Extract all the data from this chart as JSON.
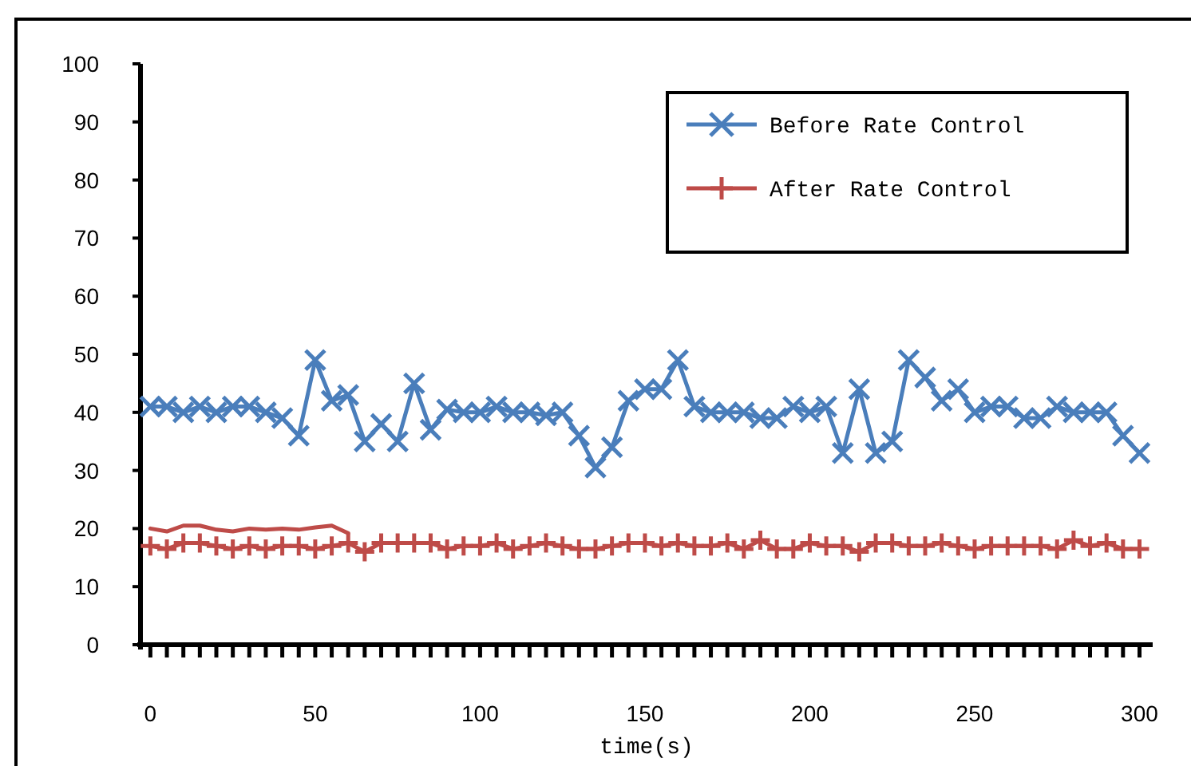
{
  "chart_data": {
    "type": "line",
    "xlabel": "time(s)",
    "xlim": [
      -3,
      304
    ],
    "ylim": [
      0,
      100
    ],
    "yticks": [
      0,
      10,
      20,
      30,
      40,
      50,
      60,
      70,
      80,
      90,
      100
    ],
    "xticks": [
      0,
      {
        "value": 5,
        "label": null
      },
      {
        "value": 10,
        "label": null
      },
      {
        "value": 15,
        "label": null
      },
      {
        "value": 20,
        "label": null
      },
      {
        "value": 25,
        "label": null
      },
      {
        "value": 30,
        "label": null
      },
      {
        "value": 35,
        "label": null
      },
      {
        "value": 40,
        "label": null
      },
      {
        "value": 45,
        "label": null
      },
      50,
      {
        "value": 55,
        "label": null
      },
      {
        "value": 60,
        "label": null
      },
      {
        "value": 65,
        "label": null
      },
      {
        "value": 70,
        "label": null
      },
      {
        "value": 75,
        "label": null
      },
      {
        "value": 80,
        "label": null
      },
      {
        "value": 85,
        "label": null
      },
      {
        "value": 90,
        "label": null
      },
      {
        "value": 95,
        "label": null
      },
      100,
      {
        "value": 105,
        "label": null
      },
      {
        "value": 110,
        "label": null
      },
      {
        "value": 115,
        "label": null
      },
      {
        "value": 120,
        "label": null
      },
      {
        "value": 125,
        "label": null
      },
      {
        "value": 130,
        "label": null
      },
      {
        "value": 135,
        "label": null
      },
      {
        "value": 140,
        "label": null
      },
      {
        "value": 145,
        "label": null
      },
      150,
      {
        "value": 155,
        "label": null
      },
      {
        "value": 160,
        "label": null
      },
      {
        "value": 165,
        "label": null
      },
      {
        "value": 170,
        "label": null
      },
      {
        "value": 175,
        "label": null
      },
      {
        "value": 180,
        "label": null
      },
      {
        "value": 185,
        "label": null
      },
      {
        "value": 190,
        "label": null
      },
      {
        "value": 195,
        "label": null
      },
      200,
      {
        "value": 205,
        "label": null
      },
      {
        "value": 210,
        "label": null
      },
      {
        "value": 215,
        "label": null
      },
      {
        "value": 220,
        "label": null
      },
      {
        "value": 225,
        "label": null
      },
      {
        "value": 230,
        "label": null
      },
      {
        "value": 235,
        "label": null
      },
      {
        "value": 240,
        "label": null
      },
      {
        "value": 245,
        "label": null
      },
      250,
      {
        "value": 255,
        "label": null
      },
      {
        "value": 260,
        "label": null
      },
      {
        "value": 265,
        "label": null
      },
      {
        "value": 270,
        "label": null
      },
      {
        "value": 275,
        "label": null
      },
      {
        "value": 280,
        "label": null
      },
      {
        "value": 285,
        "label": null
      },
      {
        "value": 290,
        "label": null
      },
      {
        "value": 295,
        "label": null
      },
      300
    ],
    "x": [
      0,
      5,
      10,
      15,
      20,
      25,
      30,
      35,
      40,
      45,
      50,
      55,
      60,
      65,
      70,
      75,
      80,
      85,
      90,
      95,
      100,
      105,
      110,
      115,
      120,
      125,
      130,
      135,
      140,
      145,
      150,
      155,
      160,
      165,
      170,
      175,
      180,
      185,
      190,
      195,
      200,
      205,
      210,
      215,
      220,
      225,
      230,
      235,
      240,
      245,
      250,
      255,
      260,
      265,
      270,
      275,
      280,
      285,
      290,
      295,
      300
    ],
    "grid": false,
    "legend": "top right",
    "line_style": "solid",
    "series": [
      {
        "name": "Before Rate Control",
        "color": "#4a7ebb",
        "marker": "cross",
        "values": [
          41,
          41,
          40,
          41,
          40,
          41,
          41,
          40,
          39,
          36,
          49,
          42,
          43,
          35,
          38,
          35,
          45,
          37,
          40.5,
          40,
          40,
          41,
          40,
          40,
          39.5,
          40,
          36,
          30.5,
          34,
          42,
          44,
          44,
          49,
          41,
          40,
          40,
          40,
          39,
          39,
          41,
          40,
          41,
          33,
          44,
          33,
          35,
          49,
          46,
          42,
          44,
          40,
          41,
          41,
          39,
          39,
          41,
          40,
          40,
          40,
          36,
          33
        ]
      },
      {
        "name": "After Rate Control",
        "color": "#be4b48",
        "marker": "plus",
        "values": [
          17,
          16.5,
          17.5,
          17.5,
          17,
          16.5,
          17,
          16.5,
          17,
          17,
          16.5,
          17,
          17.5,
          16,
          17.5,
          17.5,
          17.5,
          17.5,
          16.5,
          17,
          17,
          17.5,
          16.5,
          17,
          17.5,
          17,
          16.5,
          16.5,
          17,
          17.5,
          17.5,
          17,
          17.5,
          17,
          17,
          17.5,
          16.5,
          18,
          16.5,
          16.5,
          17.5,
          17,
          17,
          16,
          17.5,
          17.5,
          17,
          17,
          17.5,
          17,
          16.5,
          17,
          17,
          17,
          17,
          16.5,
          18,
          17,
          17.5,
          16.5,
          16.5
        ]
      },
      {
        "color": "#be4b48",
        "marker": "none",
        "x": [
          0,
          5,
          10,
          15,
          20,
          25,
          30,
          35,
          40,
          45,
          50,
          55,
          60
        ],
        "values": [
          20,
          19.5,
          20.5,
          20.5,
          19.8,
          19.5,
          20,
          19.8,
          20,
          19.8,
          20.2,
          20.5,
          19.2
        ]
      }
    ]
  }
}
